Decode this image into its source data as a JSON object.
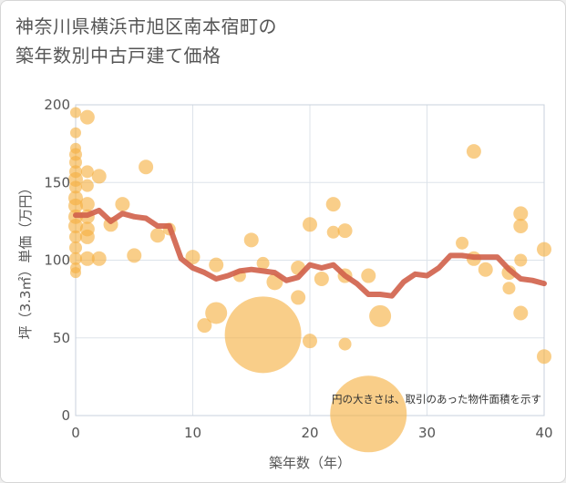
{
  "title": {
    "line1": "神奈川県横浜市旭区南本宿町の",
    "line2": "築年数別中古戸建て価格"
  },
  "colors": {
    "bubble": "#f5b041",
    "line": "#d0604a",
    "grid": "#dde3ea",
    "border": "#c8d2dc"
  },
  "chart_data": {
    "type": "scatter",
    "xlabel": "築年数（年）",
    "ylabel": "坪（3.3㎡）単価（万円）",
    "xlim": [
      0,
      40
    ],
    "ylim": [
      0,
      200
    ],
    "xticks": [
      0,
      10,
      20,
      30,
      40
    ],
    "yticks": [
      0,
      50,
      100,
      150,
      200
    ],
    "grid": true,
    "note": "円の大きさは、取引のあった物件面積を示す",
    "points": [
      {
        "x": 0,
        "y": 195,
        "s": 6
      },
      {
        "x": 0,
        "y": 182,
        "s": 6
      },
      {
        "x": 0,
        "y": 172,
        "s": 6
      },
      {
        "x": 0,
        "y": 168,
        "s": 7
      },
      {
        "x": 0,
        "y": 163,
        "s": 7
      },
      {
        "x": 0,
        "y": 157,
        "s": 7
      },
      {
        "x": 0,
        "y": 152,
        "s": 8
      },
      {
        "x": 0,
        "y": 147,
        "s": 7
      },
      {
        "x": 0,
        "y": 140,
        "s": 8
      },
      {
        "x": 0,
        "y": 135,
        "s": 8
      },
      {
        "x": 0,
        "y": 128,
        "s": 8
      },
      {
        "x": 0,
        "y": 122,
        "s": 8
      },
      {
        "x": 0,
        "y": 115,
        "s": 7
      },
      {
        "x": 0,
        "y": 108,
        "s": 7
      },
      {
        "x": 0,
        "y": 101,
        "s": 7
      },
      {
        "x": 0,
        "y": 95,
        "s": 6
      },
      {
        "x": 0,
        "y": 92,
        "s": 6
      },
      {
        "x": 1,
        "y": 192,
        "s": 8
      },
      {
        "x": 1,
        "y": 157,
        "s": 7
      },
      {
        "x": 1,
        "y": 148,
        "s": 7
      },
      {
        "x": 1,
        "y": 136,
        "s": 8
      },
      {
        "x": 1,
        "y": 128,
        "s": 8
      },
      {
        "x": 1,
        "y": 120,
        "s": 8
      },
      {
        "x": 1,
        "y": 115,
        "s": 8
      },
      {
        "x": 1,
        "y": 101,
        "s": 8
      },
      {
        "x": 2,
        "y": 154,
        "s": 8
      },
      {
        "x": 2,
        "y": 101,
        "s": 8
      },
      {
        "x": 3,
        "y": 123,
        "s": 8
      },
      {
        "x": 4,
        "y": 136,
        "s": 8
      },
      {
        "x": 5,
        "y": 103,
        "s": 8
      },
      {
        "x": 6,
        "y": 160,
        "s": 8
      },
      {
        "x": 7,
        "y": 116,
        "s": 8
      },
      {
        "x": 8,
        "y": 120,
        "s": 7
      },
      {
        "x": 10,
        "y": 102,
        "s": 8
      },
      {
        "x": 11,
        "y": 58,
        "s": 8
      },
      {
        "x": 12,
        "y": 97,
        "s": 8
      },
      {
        "x": 12,
        "y": 66,
        "s": 12
      },
      {
        "x": 14,
        "y": 90,
        "s": 7
      },
      {
        "x": 15,
        "y": 113,
        "s": 8
      },
      {
        "x": 16,
        "y": 98,
        "s": 7
      },
      {
        "x": 16,
        "y": 52,
        "s": 42
      },
      {
        "x": 17,
        "y": 86,
        "s": 9
      },
      {
        "x": 19,
        "y": 95,
        "s": 8
      },
      {
        "x": 19,
        "y": 76,
        "s": 8
      },
      {
        "x": 20,
        "y": 123,
        "s": 8
      },
      {
        "x": 20,
        "y": 48,
        "s": 8
      },
      {
        "x": 21,
        "y": 88,
        "s": 8
      },
      {
        "x": 22,
        "y": 136,
        "s": 8
      },
      {
        "x": 22,
        "y": 118,
        "s": 7
      },
      {
        "x": 23,
        "y": 119,
        "s": 8
      },
      {
        "x": 23,
        "y": 90,
        "s": 8
      },
      {
        "x": 23,
        "y": 46,
        "s": 7
      },
      {
        "x": 25,
        "y": 90,
        "s": 8
      },
      {
        "x": 25,
        "y": 1,
        "s": 42
      },
      {
        "x": 26,
        "y": 64,
        "s": 12
      },
      {
        "x": 33,
        "y": 111,
        "s": 7
      },
      {
        "x": 34,
        "y": 170,
        "s": 8
      },
      {
        "x": 34,
        "y": 101,
        "s": 8
      },
      {
        "x": 35,
        "y": 94,
        "s": 8
      },
      {
        "x": 37,
        "y": 92,
        "s": 8
      },
      {
        "x": 37,
        "y": 82,
        "s": 7
      },
      {
        "x": 38,
        "y": 130,
        "s": 8
      },
      {
        "x": 38,
        "y": 122,
        "s": 8
      },
      {
        "x": 38,
        "y": 100,
        "s": 7
      },
      {
        "x": 38,
        "y": 66,
        "s": 8
      },
      {
        "x": 40,
        "y": 107,
        "s": 8
      },
      {
        "x": 40,
        "y": 38,
        "s": 8
      }
    ],
    "trend": {
      "x": [
        0,
        1,
        2,
        3,
        4,
        5,
        6,
        7,
        8,
        9,
        10,
        11,
        12,
        13,
        14,
        15,
        16,
        17,
        18,
        19,
        20,
        21,
        22,
        23,
        24,
        25,
        26,
        27,
        28,
        29,
        30,
        31,
        32,
        33,
        34,
        35,
        36,
        37,
        38,
        39,
        40
      ],
      "y": [
        129,
        129,
        132,
        125,
        130,
        128,
        127,
        122,
        122,
        101,
        95,
        92,
        88,
        90,
        93,
        94,
        93,
        92,
        87,
        89,
        97,
        95,
        97,
        90,
        85,
        78,
        78,
        77,
        86,
        91,
        90,
        95,
        103,
        103,
        102,
        102,
        102,
        94,
        88,
        87,
        85
      ]
    }
  }
}
